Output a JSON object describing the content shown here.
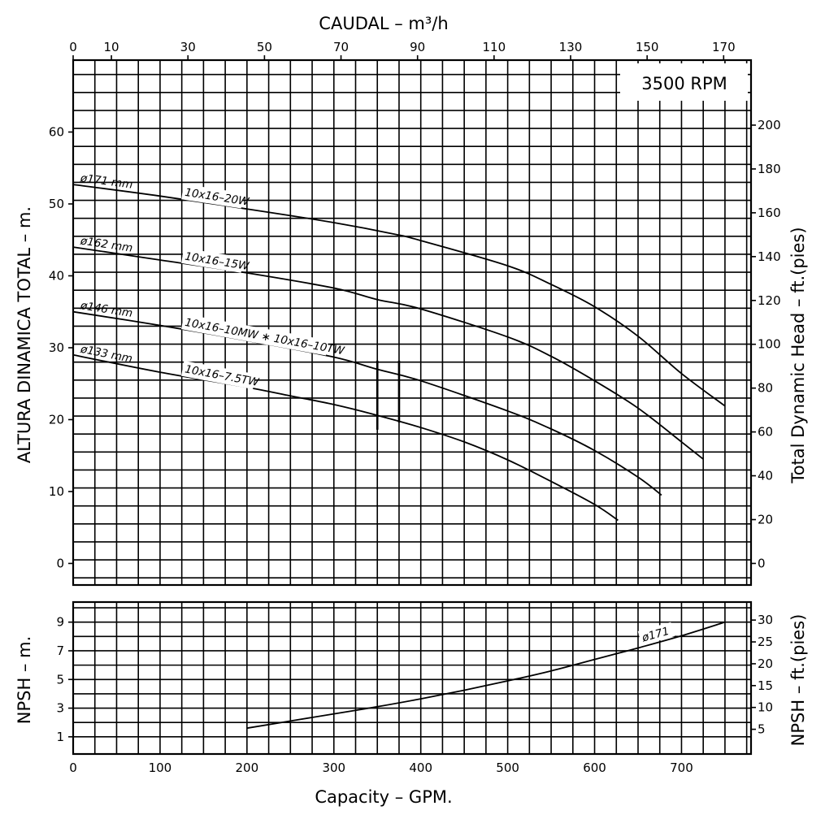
{
  "chart_data": [
    {
      "type": "line",
      "title": "3500 RPM",
      "top_axis": {
        "label": "CAUDAL   – m³/h",
        "ticks": [
          0,
          10,
          30,
          50,
          70,
          90,
          110,
          130,
          150,
          170
        ]
      },
      "xlabel": "Capacity  –  GPM.",
      "xlim": [
        0,
        780
      ],
      "ylabel": "ALTURA DINAMICA TOTAL  –  m.",
      "ylim": [
        -3,
        70
      ],
      "yticks": [
        0,
        10,
        20,
        30,
        40,
        50,
        60
      ],
      "y2label": "Total Dynamic Head  –  ft.(pies)",
      "y2ticks": [
        0,
        20,
        40,
        60,
        80,
        100,
        120,
        140,
        160,
        180,
        200
      ],
      "grid": true,
      "series": [
        {
          "name": "ø171 mm",
          "model": "10x16–20W",
          "x": [
            0,
            100,
            200,
            300,
            370,
            400,
            500,
            550,
            600,
            650,
            700,
            750
          ],
          "y": [
            52.7,
            51.1,
            49.3,
            47.4,
            45.8,
            44.9,
            41.4,
            38.8,
            35.7,
            31.6,
            26.4,
            21.9
          ]
        },
        {
          "name": "ø162 mm",
          "model": "10x16–15W",
          "x": [
            0,
            100,
            200,
            300,
            350,
            400,
            500,
            550,
            600,
            650,
            700,
            725
          ],
          "y": [
            44.0,
            42.2,
            40.4,
            38.3,
            36.7,
            35.4,
            31.5,
            28.8,
            25.4,
            21.6,
            16.9,
            14.5
          ]
        },
        {
          "name": "ø146 mm",
          "model": "10x16–10MW ∗ 10x16–10TW",
          "x": [
            0,
            100,
            200,
            300,
            350,
            400,
            500,
            550,
            600,
            650,
            677
          ],
          "y": [
            35.0,
            33.1,
            31.0,
            28.7,
            27.0,
            25.4,
            21.2,
            18.7,
            15.7,
            12.0,
            9.5
          ]
        },
        {
          "name": "ø133 mm",
          "model": "10x16–7.5TW",
          "x": [
            0,
            100,
            200,
            250,
            300,
            350,
            400,
            450,
            500,
            550,
            600,
            627
          ],
          "y": [
            29.0,
            26.6,
            24.5,
            23.3,
            22.1,
            20.6,
            18.9,
            16.9,
            14.4,
            11.4,
            8.2,
            6.0
          ]
        }
      ],
      "markers": [
        {
          "x": 350,
          "y_from": 18.6,
          "y_to": 28.2
        },
        {
          "x": 375,
          "y_from": 19.6,
          "y_to": 28.2
        }
      ]
    },
    {
      "type": "line",
      "xlabel": "Capacity  –  GPM.",
      "xticks": [
        0,
        100,
        200,
        300,
        400,
        500,
        600,
        700
      ],
      "xlim": [
        0,
        780
      ],
      "ylabel": "NPSH  –  m.",
      "ylim": [
        -0.2,
        10.4
      ],
      "yticks": [
        1,
        3,
        5,
        7,
        9
      ],
      "y2label": "NPSH  –  ft.(pies)",
      "y2ticks": [
        5,
        10,
        15,
        20,
        25,
        30
      ],
      "grid": true,
      "series": [
        {
          "name": "ø171",
          "x": [
            200,
            300,
            350,
            400,
            450,
            500,
            550,
            600,
            650,
            700,
            750
          ],
          "y": [
            1.6,
            2.6,
            3.1,
            3.65,
            4.25,
            4.9,
            5.6,
            6.4,
            7.2,
            8.05,
            9.0
          ]
        }
      ]
    }
  ]
}
